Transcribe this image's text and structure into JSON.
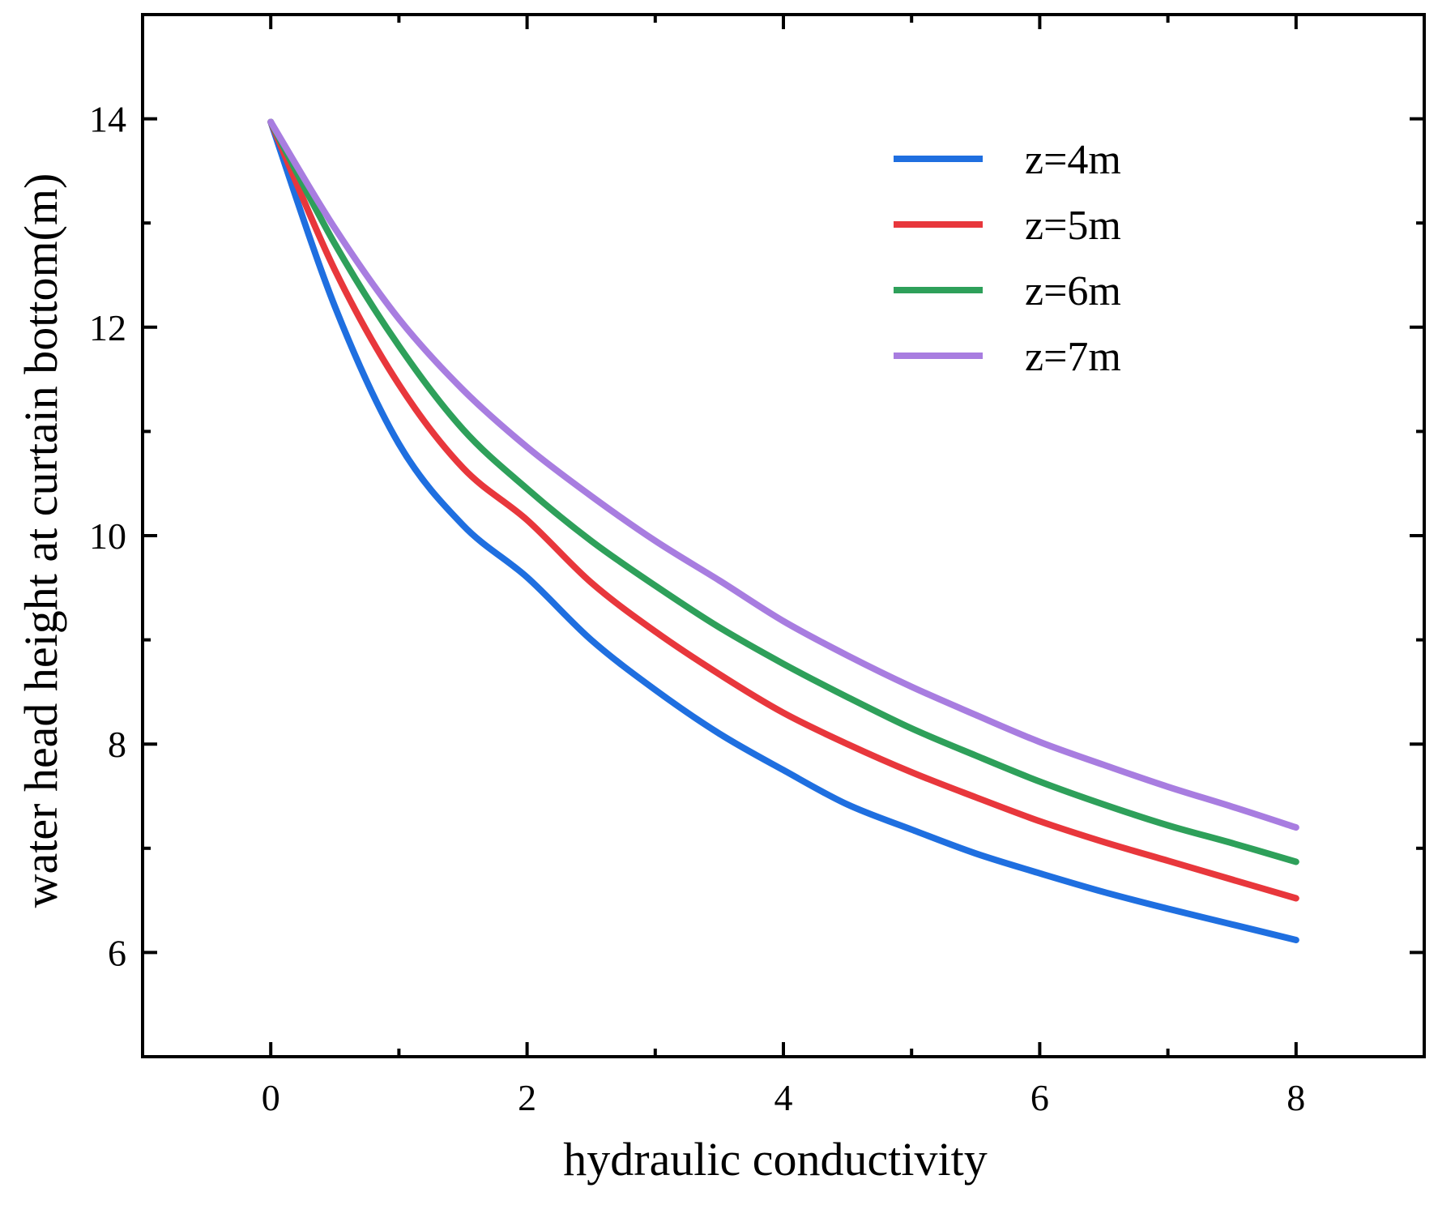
{
  "chart_data": {
    "type": "line",
    "title": "",
    "xlabel": "hydraulic conductivity",
    "ylabel": "water head height at curtain bottom(m)",
    "xlim": [
      -1,
      9
    ],
    "ylim": [
      5,
      15
    ],
    "xticks": [
      0,
      2,
      4,
      6,
      8
    ],
    "xtick_labels": [
      "0",
      "2",
      "4",
      "6",
      "8"
    ],
    "xminor": [
      1,
      3,
      5,
      7
    ],
    "yticks": [
      6,
      8,
      10,
      12,
      14
    ],
    "ytick_labels": [
      "6",
      "8",
      "10",
      "12",
      "14"
    ],
    "yminor": [
      7,
      9,
      11,
      13
    ],
    "grid": false,
    "legend_position": "top-right",
    "x": [
      0,
      0.5,
      1,
      1.5,
      2,
      2.5,
      3,
      3.5,
      4,
      4.5,
      5,
      5.5,
      6,
      6.5,
      7,
      7.5,
      8
    ],
    "series": [
      {
        "name": "z=4m",
        "color": "#1f6fe0",
        "values": [
          13.97,
          12.2,
          10.88,
          10.1,
          9.6,
          9.0,
          8.52,
          8.1,
          7.75,
          7.42,
          7.18,
          6.95,
          6.76,
          6.58,
          6.42,
          6.27,
          6.12
        ]
      },
      {
        "name": "z=5m",
        "color": "#e8373c",
        "values": [
          13.97,
          12.55,
          11.45,
          10.65,
          10.15,
          9.55,
          9.08,
          8.67,
          8.3,
          8.0,
          7.73,
          7.49,
          7.26,
          7.06,
          6.88,
          6.7,
          6.52
        ]
      },
      {
        "name": "z=6m",
        "color": "#2ea05a",
        "values": [
          13.97,
          12.8,
          11.82,
          11.02,
          10.45,
          9.95,
          9.52,
          9.12,
          8.77,
          8.45,
          8.15,
          7.89,
          7.64,
          7.42,
          7.22,
          7.05,
          6.87
        ]
      },
      {
        "name": "z=7m",
        "color": "#a87de0",
        "values": [
          13.97,
          12.95,
          12.08,
          11.4,
          10.85,
          10.38,
          9.95,
          9.57,
          9.18,
          8.85,
          8.55,
          8.28,
          8.02,
          7.8,
          7.59,
          7.4,
          7.2
        ]
      }
    ]
  }
}
